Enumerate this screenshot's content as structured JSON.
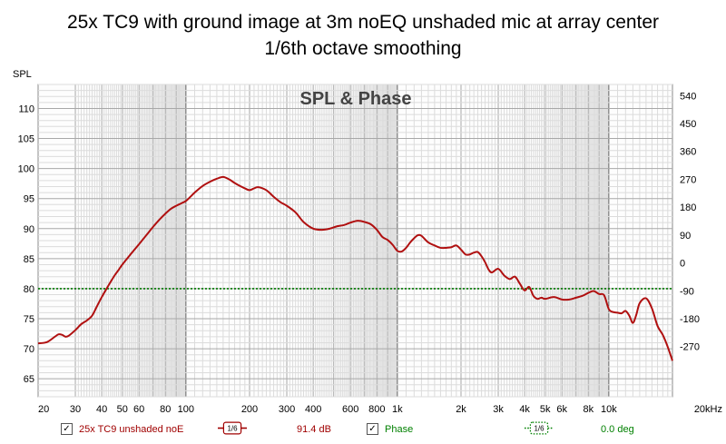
{
  "title_lines": [
    "25x TC9 with ground image at 3m noEQ unshaded mic at array center",
    "1/6th octave smoothing"
  ],
  "legend": {
    "trace_name": "25x TC9 unshaded noE",
    "smoothing": "1/6",
    "spl_readout": "91.4 dB",
    "phase_label": "Phase",
    "phase_smoothing": "1/6",
    "phase_readout": "0.0 deg"
  },
  "colors": {
    "trace": "#b01010",
    "reference": "#007a00",
    "phase_text": "#008000",
    "trace_text": "#a00000",
    "plot_bg": "#fdfdfd",
    "grid_major": "#a8a8a8",
    "grid_minor": "#dcdcdc",
    "decade_line": "#606060"
  },
  "chart_data": {
    "type": "line",
    "title": "SPL & Phase",
    "ylabel": "SPL",
    "xlabel": "",
    "x_scale": "log",
    "xlim": [
      20,
      20000
    ],
    "ylim": [
      62,
      114
    ],
    "y2lim": [
      -432,
      576
    ],
    "x_ticks": [
      {
        "v": 20,
        "label": "20"
      },
      {
        "v": 30,
        "label": "30"
      },
      {
        "v": 40,
        "label": "40"
      },
      {
        "v": 50,
        "label": "50"
      },
      {
        "v": 60,
        "label": "60"
      },
      {
        "v": 80,
        "label": "80"
      },
      {
        "v": 100,
        "label": "100"
      },
      {
        "v": 200,
        "label": "200"
      },
      {
        "v": 300,
        "label": "300"
      },
      {
        "v": 400,
        "label": "400"
      },
      {
        "v": 600,
        "label": "600"
      },
      {
        "v": 800,
        "label": "800"
      },
      {
        "v": 1000,
        "label": "1k"
      },
      {
        "v": 2000,
        "label": "2k"
      },
      {
        "v": 3000,
        "label": "3k"
      },
      {
        "v": 4000,
        "label": "4k"
      },
      {
        "v": 5000,
        "label": "5k"
      },
      {
        "v": 6000,
        "label": "6k"
      },
      {
        "v": 8000,
        "label": "8k"
      },
      {
        "v": 10000,
        "label": "10k"
      },
      {
        "v": 20000,
        "label": "20kHz"
      }
    ],
    "y_ticks": [
      110,
      105,
      100,
      95,
      90,
      85,
      80,
      75,
      70,
      65
    ],
    "y2_ticks": [
      540,
      450,
      360,
      270,
      180,
      90,
      0,
      -90,
      -180,
      -270
    ],
    "reference_line": {
      "y": 80,
      "style": "dotted"
    },
    "grid": true,
    "series": [
      {
        "name": "25x TC9 unshaded noE",
        "x": [
          20,
          22,
          24,
          25,
          26,
          27,
          28,
          30,
          32,
          34,
          36,
          38,
          40,
          42,
          44,
          46,
          48,
          50,
          55,
          60,
          65,
          70,
          75,
          80,
          85,
          90,
          95,
          100,
          105,
          110,
          120,
          130,
          140,
          150,
          160,
          170,
          180,
          190,
          200,
          210,
          220,
          240,
          260,
          280,
          300,
          330,
          360,
          400,
          440,
          480,
          520,
          560,
          600,
          650,
          700,
          750,
          800,
          850,
          900,
          950,
          1000,
          1050,
          1100,
          1150,
          1200,
          1250,
          1300,
          1400,
          1500,
          1600,
          1700,
          1800,
          1900,
          2000,
          2100,
          2200,
          2300,
          2400,
          2500,
          2600,
          2700,
          2800,
          3000,
          3200,
          3400,
          3600,
          3800,
          4000,
          4200,
          4400,
          4600,
          4800,
          5000,
          5500,
          6000,
          6500,
          7000,
          7500,
          8000,
          8500,
          9000,
          9500,
          10000,
          10500,
          11000,
          11500,
          12000,
          12500,
          13000,
          13500,
          14000,
          15000,
          16000,
          17000,
          18000,
          19000,
          20000
        ],
        "values": [
          70.9,
          71.1,
          72.0,
          72.4,
          72.3,
          72.0,
          72.2,
          73.1,
          74.1,
          74.7,
          75.5,
          77.1,
          78.6,
          79.9,
          81.1,
          82.2,
          83.1,
          84.0,
          85.8,
          87.4,
          88.9,
          90.3,
          91.5,
          92.5,
          93.3,
          93.8,
          94.2,
          94.6,
          95.3,
          96.0,
          97.1,
          97.8,
          98.3,
          98.6,
          98.2,
          97.6,
          97.1,
          96.7,
          96.4,
          96.7,
          96.9,
          96.4,
          95.3,
          94.4,
          93.8,
          92.7,
          91.1,
          90.0,
          89.8,
          90.0,
          90.4,
          90.6,
          91.0,
          91.3,
          91.1,
          90.7,
          89.8,
          88.6,
          88.1,
          87.3,
          86.3,
          86.2,
          86.8,
          87.7,
          88.4,
          88.9,
          88.8,
          87.7,
          87.2,
          86.8,
          86.8,
          86.9,
          87.2,
          86.5,
          85.7,
          85.7,
          86.0,
          86.1,
          85.4,
          84.4,
          83.2,
          82.7,
          83.3,
          82.2,
          81.6,
          82.0,
          80.8,
          79.7,
          80.3,
          78.8,
          78.3,
          78.5,
          78.3,
          78.6,
          78.2,
          78.2,
          78.5,
          78.8,
          79.3,
          79.6,
          79.1,
          78.9,
          76.6,
          76.1,
          76.0,
          75.9,
          76.3,
          75.5,
          74.3,
          75.7,
          77.6,
          78.4,
          76.7,
          73.8,
          72.3,
          70.3,
          68.0
        ]
      }
    ]
  }
}
